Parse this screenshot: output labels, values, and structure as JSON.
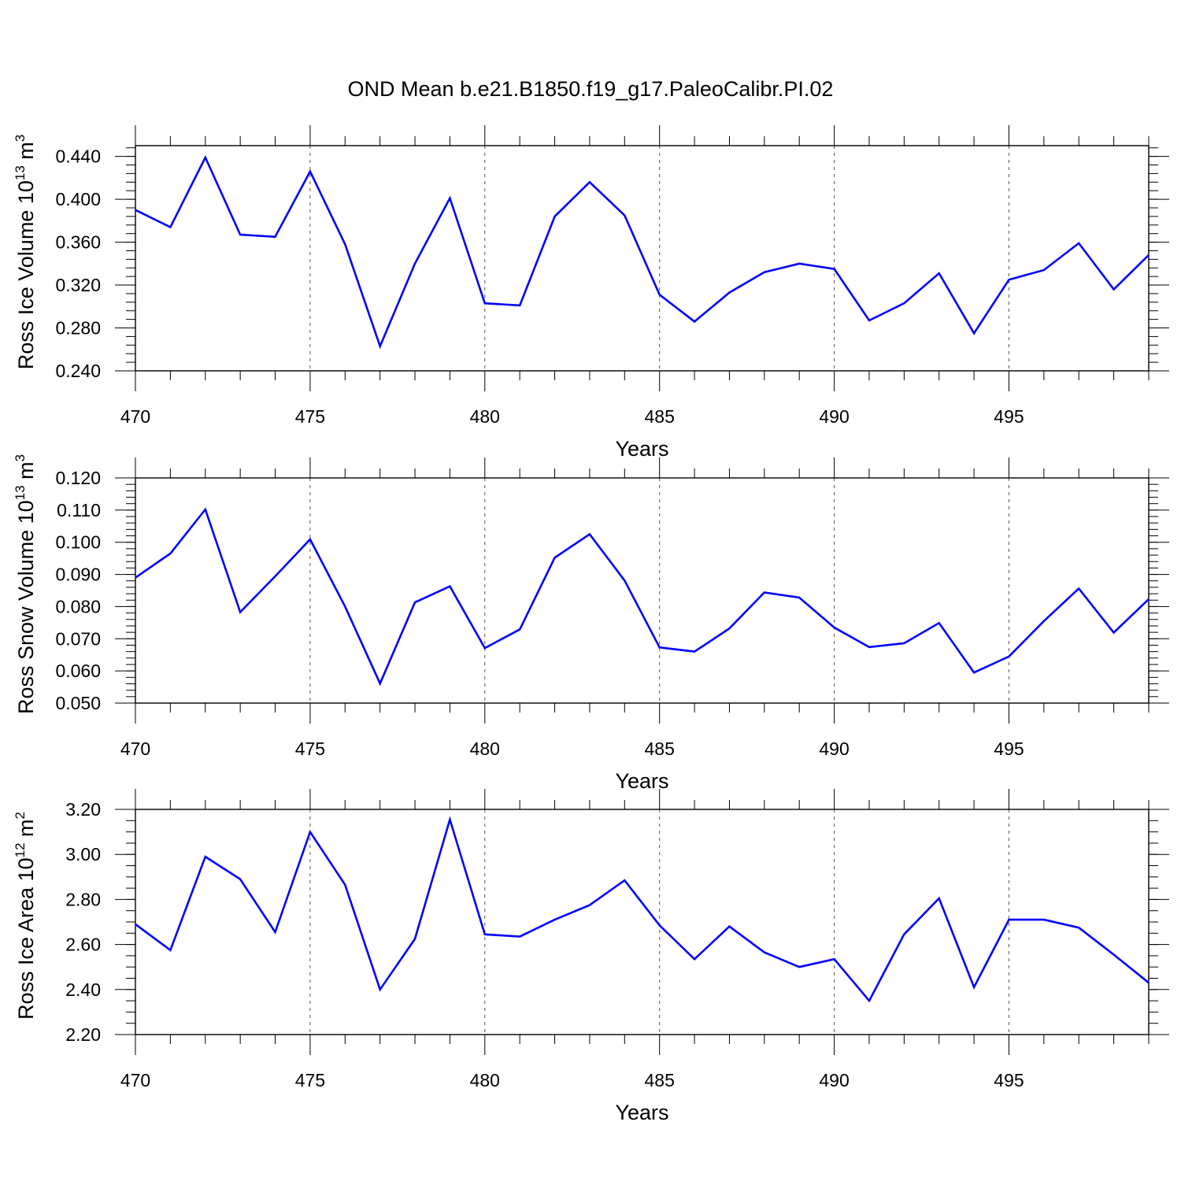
{
  "title": "OND Mean b.e21.B1850.f19_g17.PaleoCalibr.PI.02",
  "colors": {
    "line": "#0000ff",
    "axis": "#000000",
    "grid": "#555555"
  },
  "chart_data": [
    {
      "type": "line",
      "xlabel": "Years",
      "ylabel": "Ross Ice Volume 10",
      "ylabel_exp": "13",
      "ylabel_unit": " m",
      "ylabel_unit_exp": "3",
      "xlim": [
        470,
        499
      ],
      "ylim": [
        0.24,
        0.45
      ],
      "xticks": [
        470,
        475,
        480,
        485,
        490,
        495
      ],
      "xtick_labels": [
        "470",
        "475",
        "480",
        "485",
        "490",
        "495"
      ],
      "yticks": [
        0.24,
        0.28,
        0.32,
        0.36,
        0.4,
        0.44
      ],
      "ytick_labels": [
        "0.240",
        "0.280",
        "0.320",
        "0.360",
        "0.400",
        "0.440"
      ],
      "y_minor_step": 0.008,
      "grid": "vertical dashed at major x ticks",
      "x": [
        470,
        471,
        472,
        473,
        474,
        475,
        476,
        477,
        478,
        479,
        480,
        481,
        482,
        483,
        484,
        485,
        486,
        487,
        488,
        489,
        490,
        491,
        492,
        493,
        494,
        495,
        496,
        497,
        498,
        499
      ],
      "values": [
        0.39,
        0.374,
        0.439,
        0.367,
        0.365,
        0.426,
        0.358,
        0.263,
        0.34,
        0.401,
        0.303,
        0.301,
        0.384,
        0.416,
        0.385,
        0.311,
        0.286,
        0.313,
        0.332,
        0.34,
        0.335,
        0.287,
        0.303,
        0.331,
        0.275,
        0.325,
        0.334,
        0.359,
        0.316,
        0.348
      ]
    },
    {
      "type": "line",
      "xlabel": "Years",
      "ylabel": "Ross Snow Volume 10",
      "ylabel_exp": "13",
      "ylabel_unit": " m",
      "ylabel_unit_exp": "3",
      "xlim": [
        470,
        499
      ],
      "ylim": [
        0.05,
        0.12
      ],
      "xticks": [
        470,
        475,
        480,
        485,
        490,
        495
      ],
      "xtick_labels": [
        "470",
        "475",
        "480",
        "485",
        "490",
        "495"
      ],
      "yticks": [
        0.05,
        0.06,
        0.07,
        0.08,
        0.09,
        0.1,
        0.11,
        0.12
      ],
      "ytick_labels": [
        "0.050",
        "0.060",
        "0.070",
        "0.080",
        "0.090",
        "0.100",
        "0.110",
        "0.120"
      ],
      "y_minor_step": 0.002,
      "grid": "vertical dashed at major x ticks",
      "x": [
        470,
        471,
        472,
        473,
        474,
        475,
        476,
        477,
        478,
        479,
        480,
        481,
        482,
        483,
        484,
        485,
        486,
        487,
        488,
        489,
        490,
        491,
        492,
        493,
        494,
        495,
        496,
        497,
        498,
        499
      ],
      "values": [
        0.089,
        0.0965,
        0.1102,
        0.0783,
        0.0894,
        0.1009,
        0.08,
        0.0561,
        0.0813,
        0.0863,
        0.0671,
        0.0729,
        0.0952,
        0.1025,
        0.0881,
        0.0673,
        0.066,
        0.0732,
        0.0844,
        0.0828,
        0.0735,
        0.0674,
        0.0686,
        0.0749,
        0.0595,
        0.0645,
        0.0755,
        0.0856,
        0.0719,
        0.0823
      ]
    },
    {
      "type": "line",
      "xlabel": "Years",
      "ylabel": "Ross Ice Area 10",
      "ylabel_exp": "12",
      "ylabel_unit": " m",
      "ylabel_unit_exp": "2",
      "xlim": [
        470,
        499
      ],
      "ylim": [
        2.2,
        3.2
      ],
      "xticks": [
        470,
        475,
        480,
        485,
        490,
        495
      ],
      "xtick_labels": [
        "470",
        "475",
        "480",
        "485",
        "490",
        "495"
      ],
      "yticks": [
        2.2,
        2.4,
        2.6,
        2.8,
        3.0,
        3.2
      ],
      "ytick_labels": [
        "2.20",
        "2.40",
        "2.60",
        "2.80",
        "3.00",
        "3.20"
      ],
      "y_minor_step": 0.05,
      "grid": "vertical dashed at major x ticks",
      "x": [
        470,
        471,
        472,
        473,
        474,
        475,
        476,
        477,
        478,
        479,
        480,
        481,
        482,
        483,
        484,
        485,
        486,
        487,
        488,
        489,
        490,
        491,
        492,
        493,
        494,
        495,
        496,
        497,
        498,
        499
      ],
      "values": [
        2.69,
        2.575,
        2.99,
        2.89,
        2.655,
        3.1,
        2.865,
        2.4,
        2.625,
        3.155,
        2.645,
        2.635,
        2.71,
        2.775,
        2.885,
        2.685,
        2.535,
        2.68,
        2.565,
        2.5,
        2.535,
        2.35,
        2.645,
        2.805,
        2.41,
        2.71,
        2.71,
        2.675,
        2.555,
        2.43
      ]
    }
  ]
}
